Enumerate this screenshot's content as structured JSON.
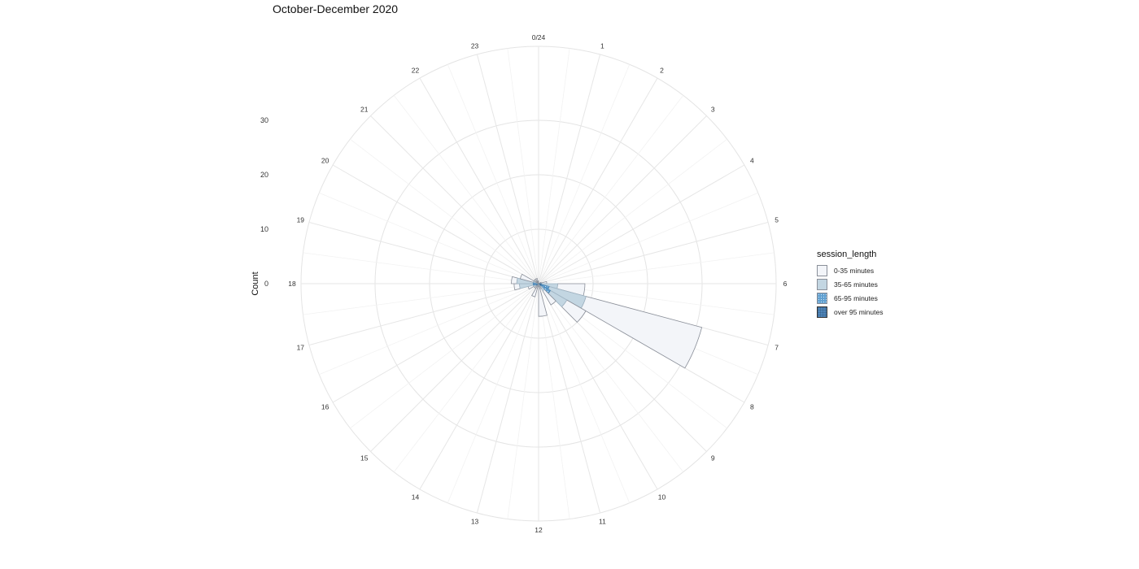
{
  "chart_data": {
    "type": "bar",
    "polar": true,
    "title": "October-December 2020",
    "ylabel": "Count",
    "y_ticks": [
      "0",
      "10",
      "20",
      "30"
    ],
    "ylim": [
      0,
      40
    ],
    "hour_labels": [
      "0/24",
      "1",
      "2",
      "3",
      "4",
      "5",
      "6",
      "7",
      "8",
      "9",
      "10",
      "11",
      "12",
      "13",
      "14",
      "15",
      "16",
      "17",
      "18",
      "19",
      "20",
      "21",
      "22",
      "23"
    ],
    "categories": [
      0,
      1,
      2,
      3,
      4,
      5,
      6,
      7,
      8,
      9,
      10,
      11,
      12,
      13,
      14,
      15,
      16,
      17,
      18,
      19,
      20,
      21,
      22,
      23
    ],
    "legend_title": "session_length",
    "legend_position": "right",
    "grid": true,
    "series": [
      {
        "name": "0-35 minutes",
        "color": "#f3f5f9",
        "pattern": "none",
        "values": [
          0,
          0,
          0,
          0,
          0,
          0,
          0,
          0,
          0,
          0,
          0,
          0,
          0,
          0,
          0,
          0,
          0,
          0,
          0,
          0,
          0,
          0,
          0,
          0
        ]
      },
      {
        "name": "35-65 minutes",
        "color": "#c3d6e2",
        "pattern": "none",
        "values": [
          0,
          0,
          0,
          0,
          0,
          0,
          0,
          0,
          0,
          0,
          0,
          0,
          0,
          0,
          0,
          0,
          0,
          0,
          0,
          0,
          0,
          0,
          0,
          0
        ]
      },
      {
        "name": "65-95 minutes",
        "color": "#5f9fd0",
        "pattern": "dots",
        "values": [
          0,
          0,
          0,
          0,
          0,
          0,
          0,
          0,
          0,
          0,
          0,
          0,
          0,
          0,
          0,
          0,
          0,
          0,
          0,
          0,
          0,
          0,
          0,
          0
        ]
      },
      {
        "name": "over 95 minutes",
        "color": "#4f86b9",
        "pattern": "grid",
        "values": [
          0,
          0,
          0,
          0,
          0,
          0,
          0,
          0,
          0,
          0,
          0,
          0,
          0,
          0,
          0,
          0,
          0,
          0,
          0,
          0,
          0,
          0,
          0,
          0
        ]
      }
    ],
    "bars": [
      {
        "hour": 0,
        "segments": [
          0,
          0,
          0,
          0
        ]
      },
      {
        "hour": 4.5,
        "segments": [
          0.5,
          0,
          0,
          0
        ]
      },
      {
        "hour": 5.5,
        "segments": [
          1.5,
          0,
          0,
          0
        ]
      },
      {
        "hour": 6.5,
        "segments": [
          5,
          3,
          0.5,
          0
        ]
      },
      {
        "hour": 7.5,
        "segments": [
          22,
          7,
          2,
          0
        ]
      },
      {
        "hour": 8.5,
        "segments": [
          4,
          3.5,
          2,
          0.5
        ]
      },
      {
        "hour": 9.5,
        "segments": [
          3,
          1,
          0.5,
          0
        ]
      },
      {
        "hour": 10.5,
        "segments": [
          0.5,
          0.5,
          0,
          0
        ]
      },
      {
        "hour": 11.5,
        "segments": [
          6,
          0,
          0,
          0
        ]
      },
      {
        "hour": 12.5,
        "segments": [
          0.5,
          0,
          0,
          0
        ]
      },
      {
        "hour": 13.5,
        "segments": [
          2,
          0.5,
          0,
          0
        ]
      },
      {
        "hour": 14.5,
        "segments": [
          1,
          0,
          0,
          0
        ]
      },
      {
        "hour": 15.5,
        "segments": [
          1,
          0,
          0,
          0
        ]
      },
      {
        "hour": 16.5,
        "segments": [
          1,
          0.5,
          0.5,
          0
        ]
      },
      {
        "hour": 17.5,
        "segments": [
          1,
          2.5,
          1,
          0
        ]
      },
      {
        "hour": 18.5,
        "segments": [
          1,
          3,
          1,
          0
        ]
      },
      {
        "hour": 19.5,
        "segments": [
          2.5,
          1,
          0,
          0
        ]
      },
      {
        "hour": 20.5,
        "segments": [
          1,
          0,
          0,
          0
        ]
      },
      {
        "hour": 21.5,
        "segments": [
          1,
          0,
          0,
          0
        ]
      },
      {
        "hour": 22.5,
        "segments": [
          1,
          0,
          0,
          0
        ]
      },
      {
        "hour": 23.5,
        "segments": [
          0.5,
          0,
          0,
          0
        ]
      }
    ]
  }
}
